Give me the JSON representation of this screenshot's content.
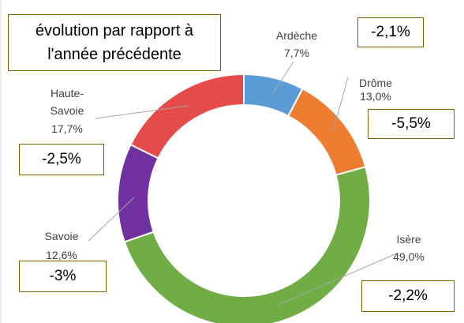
{
  "chart_data": {
    "type": "donut",
    "title": "évolution par rapport à l'année précédente",
    "categories": [
      "Ardèche",
      "Drôme",
      "Isère",
      "Savoie",
      "Haute-Savoie"
    ],
    "values": [
      7.7,
      13.0,
      49.0,
      12.6,
      17.7
    ],
    "value_labels": [
      "7,7%",
      "13,0%",
      "49,0%",
      "12,6%",
      "17,7%"
    ],
    "colors": [
      "#5b9bd5",
      "#ed7d31",
      "#70ad47",
      "#7030a0",
      "#e64b4b"
    ],
    "annotations": [
      "-2,1%",
      "-5,5%",
      "-2,2%",
      "-3%",
      "-2,5%"
    ]
  }
}
